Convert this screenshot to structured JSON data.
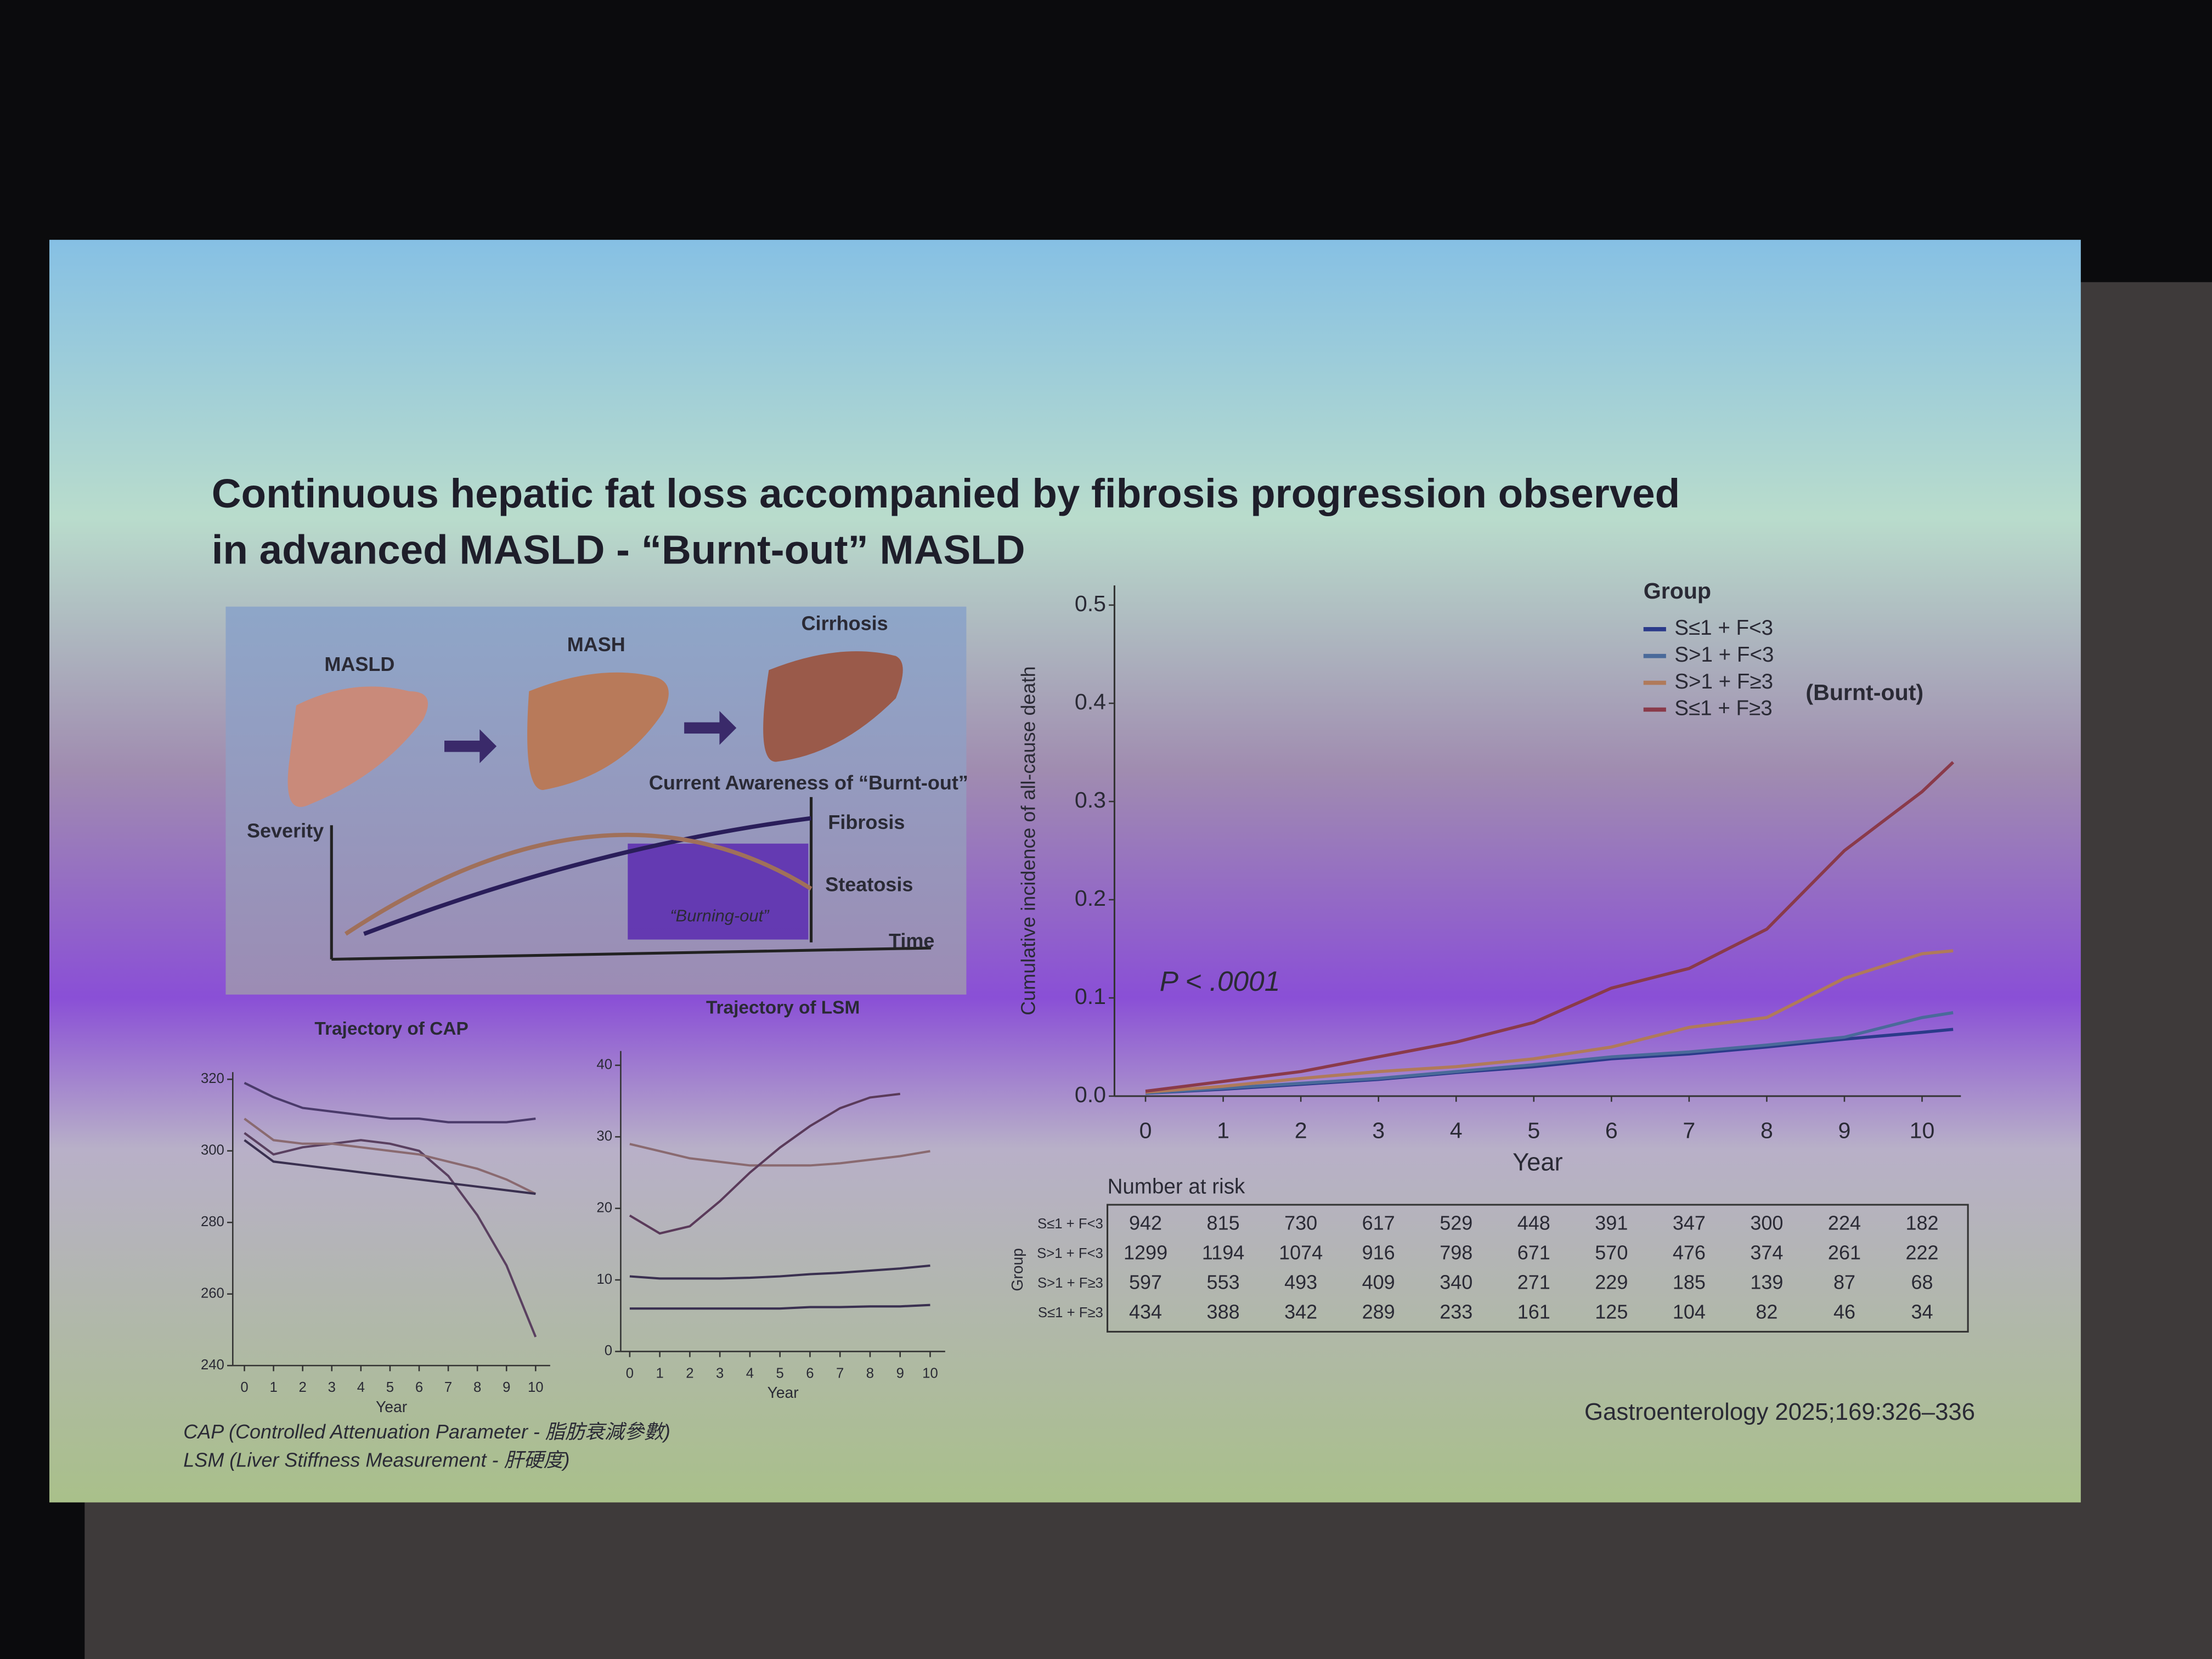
{
  "slide": {
    "title": [
      "Continuous hepatic fat loss accompanied by fibrosis progression observed",
      "in advanced MASLD - “Burnt-out” MASLD"
    ],
    "diagram": {
      "stages": [
        "MASLD",
        "MASH",
        "Cirrhosis"
      ],
      "awareness": "Current Awareness of “Burnt-out”",
      "y_label": "Severity",
      "x_label": "Time",
      "fibrosis": "Fibrosis",
      "steatosis": "Steatosis",
      "burning": "“Burning-out”"
    },
    "footnotes": [
      "CAP (Controlled Attenuation Parameter - 脂肪衰減參數)",
      "LSM (Liver Stiffness Measurement - 肝硬度)"
    ],
    "citation": "Gastroenterology 2025;169:326–336"
  },
  "chart_data": [
    {
      "type": "line",
      "ylabel": "Cumulative incidence of all-cause death",
      "xlabel": "Year",
      "x": [
        0,
        1,
        2,
        3,
        4,
        5,
        6,
        7,
        8,
        9,
        10,
        10.4
      ],
      "xlim": [
        -0.4,
        10.5
      ],
      "ylim": [
        0,
        0.52
      ],
      "xticks": [
        0,
        1,
        2,
        3,
        4,
        5,
        6,
        7,
        8,
        9,
        10
      ],
      "yticks": [
        {
          "value": 0,
          "label": "0.0"
        },
        0.1,
        0.2,
        0.3,
        0.4,
        0.5
      ],
      "legend_title": "Group",
      "annotations": [
        "P < .0001",
        "(Burnt-out)"
      ],
      "series": [
        {
          "name": "S≤1 + F<3",
          "color": "#2b3a8a",
          "values": [
            0.003,
            0.007,
            0.012,
            0.017,
            0.024,
            0.03,
            0.038,
            0.043,
            0.05,
            0.058,
            0.065,
            0.068
          ]
        },
        {
          "name": "S>1 + F<3",
          "color": "#4a6a9a",
          "values": [
            0.003,
            0.008,
            0.013,
            0.018,
            0.025,
            0.032,
            0.04,
            0.045,
            0.052,
            0.06,
            0.08,
            0.085
          ]
        },
        {
          "name": "S>1 + F≥3",
          "color": "#b07a5a",
          "values": [
            0.004,
            0.01,
            0.018,
            0.025,
            0.03,
            0.038,
            0.05,
            0.07,
            0.08,
            0.12,
            0.145,
            0.148
          ]
        },
        {
          "name": "S≤1 + F≥3",
          "color": "#8a3a4a",
          "values": [
            0.005,
            0.015,
            0.025,
            0.04,
            0.055,
            0.075,
            0.11,
            0.13,
            0.17,
            0.25,
            0.31,
            0.34
          ]
        }
      ],
      "risk_table": {
        "title": "Number at risk",
        "label": "Group",
        "rows": [
          {
            "name": "S≤1 + F<3",
            "values": [
              942,
              815,
              730,
              617,
              529,
              448,
              391,
              347,
              300,
              224,
              182
            ]
          },
          {
            "name": "S>1 + F<3",
            "values": [
              1299,
              1194,
              1074,
              916,
              798,
              671,
              570,
              476,
              374,
              261,
              222
            ]
          },
          {
            "name": "S>1 + F≥3",
            "values": [
              597,
              553,
              493,
              409,
              340,
              271,
              229,
              185,
              139,
              87,
              68
            ]
          },
          {
            "name": "S≤1 + F≥3",
            "values": [
              434,
              388,
              342,
              289,
              233,
              161,
              125,
              104,
              82,
              46,
              34
            ]
          }
        ]
      }
    },
    {
      "type": "line",
      "title": "Trajectory of CAP",
      "xlabel": "Year",
      "x": [
        0,
        1,
        2,
        3,
        4,
        5,
        6,
        7,
        8,
        9,
        10
      ],
      "xlim": [
        -0.4,
        10.5
      ],
      "ylim": [
        240,
        322
      ],
      "xticks": [
        0,
        1,
        2,
        3,
        4,
        5,
        6,
        7,
        8,
        9,
        10
      ],
      "yticks": [
        240,
        260,
        280,
        300,
        320
      ],
      "series": [
        {
          "color": "#4a3a6a",
          "values": [
            319,
            315,
            312,
            311,
            310,
            309,
            309,
            308,
            308,
            308,
            309
          ]
        },
        {
          "color": "#5a4060",
          "values": [
            305,
            299,
            301,
            302,
            303,
            302,
            300,
            293,
            282,
            268,
            248
          ]
        },
        {
          "color": "#8a6a70",
          "values": [
            309,
            303,
            302,
            302,
            301,
            300,
            299,
            297,
            295,
            292,
            288
          ]
        },
        {
          "color": "#3a3050",
          "values": [
            303,
            297,
            296,
            295,
            294,
            293,
            292,
            291,
            290,
            289,
            288
          ]
        }
      ]
    },
    {
      "type": "line",
      "title": "Trajectory of LSM",
      "xlabel": "Year",
      "x": [
        0,
        1,
        2,
        3,
        4,
        5,
        6,
        7,
        8,
        9,
        10
      ],
      "xlim": [
        -0.3,
        10.5
      ],
      "ylim": [
        0,
        42
      ],
      "xticks": [
        0,
        1,
        2,
        3,
        4,
        5,
        6,
        7,
        8,
        9,
        10
      ],
      "yticks": [
        0,
        10,
        20,
        30,
        40
      ],
      "series": [
        {
          "color": "#8a6a70",
          "values": [
            29,
            28,
            27,
            26.5,
            26,
            26,
            26,
            26.3,
            26.8,
            27.3,
            28
          ]
        },
        {
          "color": "#5a3a5a",
          "values": [
            19,
            16.5,
            17.5,
            21,
            25,
            28.5,
            31.5,
            34,
            35.5,
            36,
            null
          ]
        },
        {
          "color": "#3a3050",
          "values": [
            10.5,
            10.2,
            10.2,
            10.2,
            10.3,
            10.5,
            10.8,
            11,
            11.3,
            11.6,
            12
          ]
        },
        {
          "color": "#3a3050",
          "values": [
            6,
            6,
            6,
            6,
            6,
            6,
            6.2,
            6.2,
            6.3,
            6.3,
            6.5
          ]
        }
      ]
    }
  ]
}
